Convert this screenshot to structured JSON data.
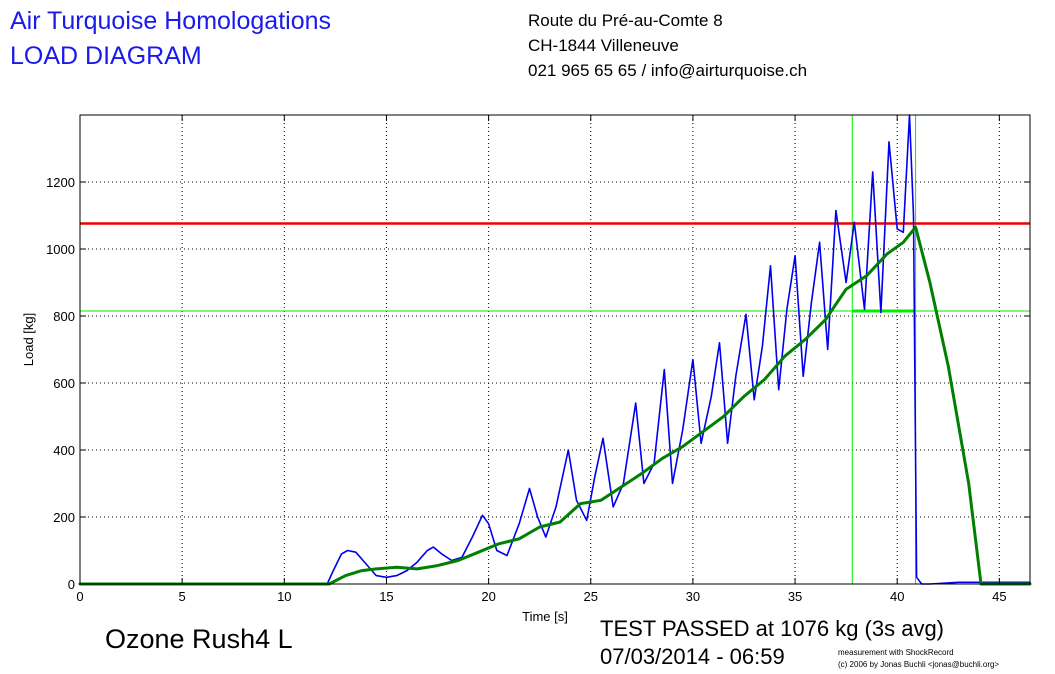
{
  "header": {
    "title_line1": "Air Turquoise Homologations",
    "title_line2": "LOAD DIAGRAM",
    "address_line1": "Route du Pré-au-Comte 8",
    "address_line2": "CH-1844 Villeneuve",
    "address_line3": "021 965 65 65 / info@airturquoise.ch"
  },
  "footer": {
    "product": "Ozone Rush4 L",
    "result": "TEST PASSED at 1076 kg (3s avg)",
    "datetime": "07/03/2014 - 06:59",
    "credit_line1": "measurement with ShockRecord",
    "credit_line2": "(c) 2006 by Jonas Buchli <jonas@buchli.org>"
  },
  "chart_data": {
    "type": "line",
    "xlabel": "Time [s]",
    "ylabel": "Load [kg]",
    "xlim": [
      0,
      46.5
    ],
    "ylim": [
      0,
      1400
    ],
    "xticks": [
      0,
      5,
      10,
      15,
      20,
      25,
      30,
      35,
      40,
      45
    ],
    "yticks": [
      0,
      200,
      400,
      600,
      800,
      1000,
      1200
    ],
    "grid": true,
    "colors": {
      "raw": "#0000ee",
      "avg": "#008000",
      "threshold": "#ee0000",
      "markers": "#00ee00"
    },
    "threshold_load": 1076,
    "marker_load": 815,
    "marker_times": [
      37.8,
      40.9
    ],
    "series": [
      {
        "key": "raw",
        "x": [
          0,
          12.1,
          12.4,
          12.8,
          13.1,
          13.5,
          14.0,
          14.5,
          15.0,
          15.5,
          16.0,
          16.5,
          17.0,
          17.3,
          17.7,
          18.2,
          18.7,
          19.2,
          19.7,
          20.0,
          20.4,
          20.9,
          21.5,
          22.0,
          22.4,
          22.8,
          23.3,
          23.9,
          24.3,
          24.8,
          25.2,
          25.6,
          26.1,
          26.6,
          27.2,
          27.6,
          28.1,
          28.6,
          29.0,
          29.5,
          30.0,
          30.4,
          30.9,
          31.3,
          31.7,
          32.1,
          32.6,
          33.0,
          33.4,
          33.8,
          34.2,
          34.6,
          35.0,
          35.4,
          35.8,
          36.2,
          36.6,
          37.0,
          37.5,
          37.9,
          38.4,
          38.8,
          39.2,
          39.6,
          40.0,
          40.3,
          40.6,
          40.8,
          40.95,
          41.2,
          41.6,
          43.0,
          44.0,
          46.5
        ],
        "y": [
          0,
          0,
          40,
          90,
          100,
          95,
          60,
          25,
          20,
          25,
          40,
          65,
          100,
          110,
          90,
          70,
          80,
          140,
          205,
          180,
          100,
          85,
          180,
          285,
          200,
          140,
          230,
          400,
          250,
          190,
          320,
          435,
          230,
          300,
          540,
          300,
          360,
          640,
          300,
          460,
          670,
          420,
          560,
          720,
          420,
          620,
          805,
          550,
          710,
          950,
          580,
          820,
          980,
          620,
          840,
          1020,
          700,
          1115,
          900,
          1080,
          820,
          1230,
          810,
          1320,
          1060,
          1050,
          1400,
          1100,
          20,
          0,
          0,
          5,
          5,
          5
        ]
      },
      {
        "key": "avg",
        "x": [
          0,
          12.2,
          13.0,
          13.8,
          14.5,
          15.5,
          16.5,
          17.5,
          18.5,
          19.5,
          20.5,
          21.5,
          22.5,
          23.5,
          24.5,
          25.5,
          26.5,
          27.5,
          28.5,
          29.5,
          30.5,
          31.5,
          32.5,
          33.5,
          34.5,
          35.5,
          36.5,
          37.5,
          38.5,
          39.5,
          40.3,
          40.9,
          41.6,
          42.5,
          43.5,
          44.1,
          46.5
        ],
        "y": [
          0,
          0,
          25,
          40,
          45,
          50,
          45,
          55,
          70,
          95,
          120,
          135,
          170,
          185,
          240,
          250,
          290,
          330,
          375,
          410,
          455,
          500,
          560,
          610,
          680,
          730,
          790,
          880,
          920,
          985,
          1020,
          1065,
          900,
          650,
          300,
          0,
          0
        ]
      }
    ]
  }
}
